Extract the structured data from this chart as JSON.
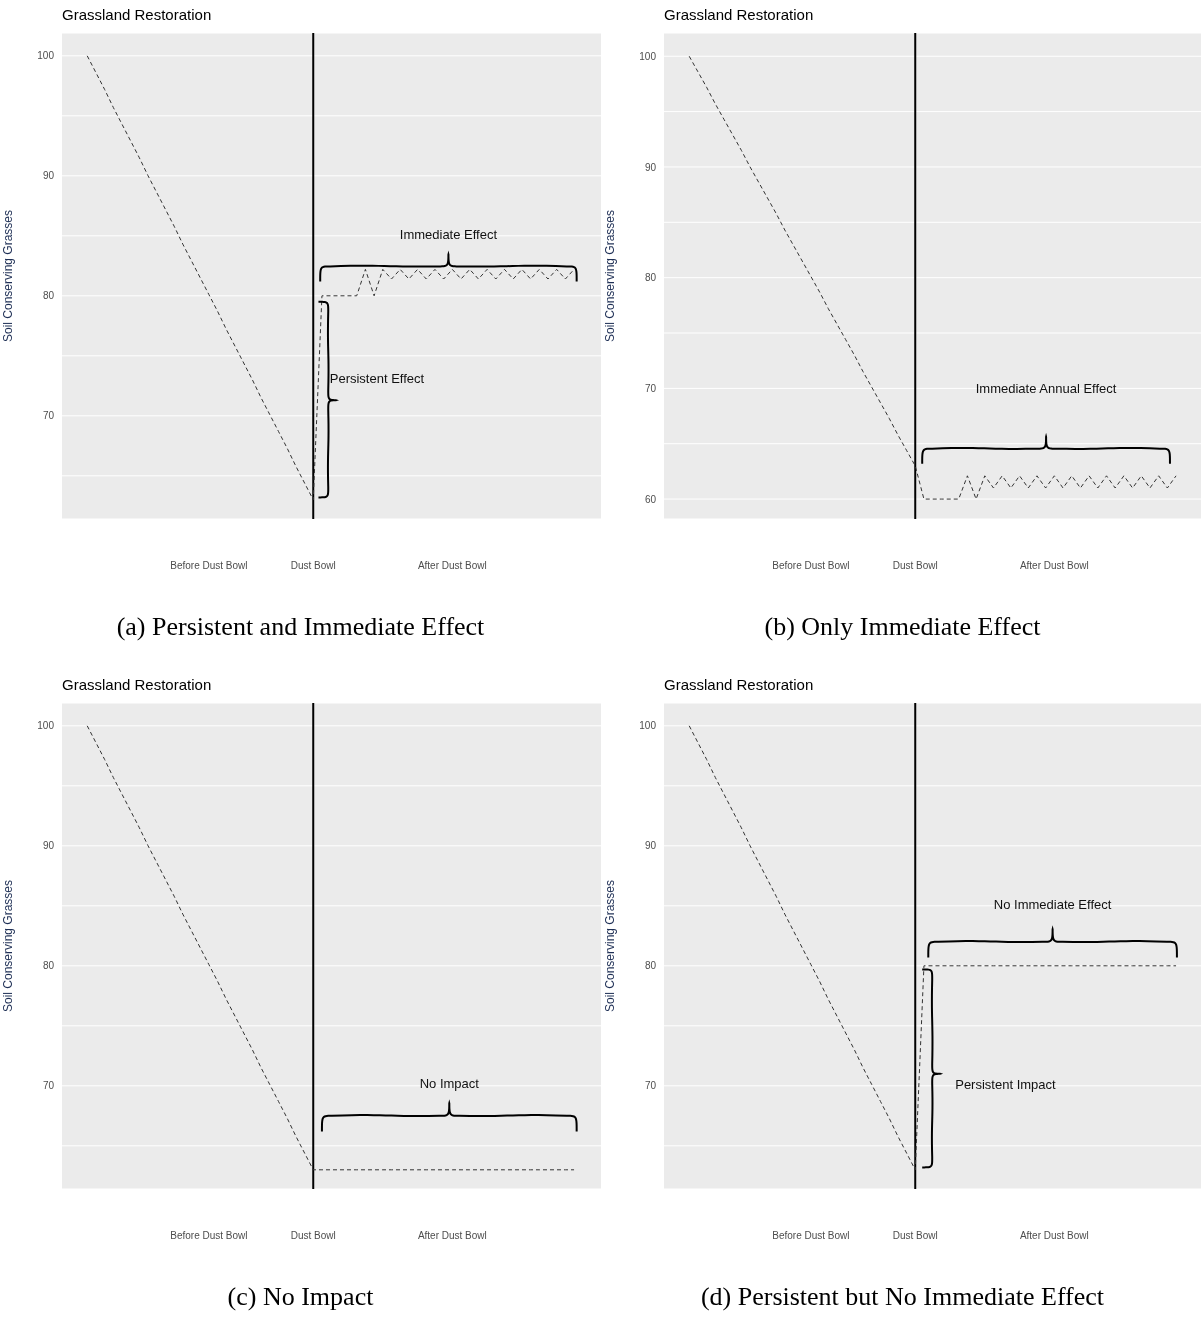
{
  "chart_data": [
    {
      "type": "line",
      "title": "Grassland Restoration",
      "ylabel": "Soil Conserving Grasses",
      "categories": [
        null,
        null,
        null,
        null,
        null,
        null,
        null,
        null,
        null,
        null,
        null,
        null,
        null,
        null,
        "Before Dust Bowl",
        null,
        null,
        null,
        null,
        null,
        null,
        null,
        null,
        null,
        null,
        null,
        "Dust Bowl",
        null,
        null,
        null,
        null,
        null,
        null,
        null,
        null,
        null,
        null,
        null,
        null,
        null,
        null,
        null,
        "After Dust Bowl",
        null,
        null,
        null,
        null,
        null,
        null,
        null,
        null,
        null,
        null,
        null,
        null,
        null,
        null
      ],
      "series": [
        {
          "color": "#333333",
          "values": [
            100,
            98.6,
            97.2,
            95.7,
            94.3,
            92.9,
            91.5,
            90,
            88.6,
            87.2,
            85.8,
            84.3,
            82.9,
            81.5,
            80.1,
            78.7,
            77.2,
            75.8,
            74.4,
            73,
            71.5,
            70.1,
            68.7,
            67.3,
            65.8,
            64.4,
            63,
            80,
            80,
            80,
            80,
            80,
            82.2,
            80,
            82.2,
            81.4,
            82.2,
            81.4,
            82.2,
            81.4,
            82.2,
            81.4,
            82.2,
            81.4,
            82.2,
            81.4,
            82.2,
            81.4,
            82.2,
            81.4,
            82.2,
            81.4,
            82.2,
            81.4,
            82.2,
            81.4,
            82.2
          ]
        }
      ],
      "ylim": [
        61.4,
        101.9
      ],
      "yticks": [
        {
          "value": 65,
          "label": null
        },
        70,
        {
          "value": 75,
          "label": null
        },
        80,
        {
          "value": 85,
          "label": null
        },
        90,
        {
          "value": 95,
          "label": null
        },
        100
      ],
      "grid": "y",
      "line_style": "dashed",
      "marker": "none",
      "ref_lines": [
        {
          "axis": "x",
          "value": "Dust Bowl",
          "color": "#000000"
        }
      ],
      "annotations": [
        "Immediate Effect",
        "Persistent Effect",
        "(a) Persistent and Immediate Effect"
      ]
    },
    {
      "type": "line",
      "title": "Grassland Restoration",
      "ylabel": "Soil Conserving Grasses",
      "categories": [
        null,
        null,
        null,
        null,
        null,
        null,
        null,
        null,
        null,
        null,
        null,
        null,
        null,
        null,
        "Before Dust Bowl",
        null,
        null,
        null,
        null,
        null,
        null,
        null,
        null,
        null,
        null,
        null,
        "Dust Bowl",
        null,
        null,
        null,
        null,
        null,
        null,
        null,
        null,
        null,
        null,
        null,
        null,
        null,
        null,
        null,
        "After Dust Bowl",
        null,
        null,
        null,
        null,
        null,
        null,
        null,
        null,
        null,
        null,
        null,
        null,
        null,
        null
      ],
      "series": [
        {
          "color": "#333333",
          "values": [
            100,
            98.6,
            97.2,
            95.7,
            94.3,
            92.9,
            91.5,
            90,
            88.6,
            87.2,
            85.8,
            84.3,
            82.9,
            81.5,
            80.1,
            78.7,
            77.2,
            75.8,
            74.4,
            73,
            71.5,
            70.1,
            68.7,
            67.3,
            65.8,
            64.4,
            63,
            60,
            60,
            60,
            60,
            60,
            62.1,
            60,
            62.1,
            61,
            62.1,
            61,
            62.1,
            61,
            62.1,
            61,
            62.1,
            61,
            62.1,
            61,
            62.1,
            61,
            62.1,
            61,
            62.1,
            61,
            62.1,
            61,
            62.1,
            61,
            62.1
          ]
        }
      ],
      "ylim": [
        58.2,
        102.1
      ],
      "yticks": [
        60,
        {
          "value": 65,
          "label": null
        },
        70,
        {
          "value": 75,
          "label": null
        },
        80,
        {
          "value": 85,
          "label": null
        },
        90,
        {
          "value": 95,
          "label": null
        },
        100
      ],
      "grid": "y",
      "line_style": "dashed",
      "marker": "none",
      "ref_lines": [
        {
          "axis": "x",
          "value": "Dust Bowl",
          "color": "#000000"
        }
      ],
      "annotations": [
        "Immediate Annual Effect",
        "(b) Only Immediate Effect"
      ]
    },
    {
      "type": "line",
      "title": "Grassland Restoration",
      "ylabel": "Soil Conserving Grasses",
      "categories": [
        null,
        null,
        null,
        null,
        null,
        null,
        null,
        null,
        null,
        null,
        null,
        null,
        null,
        null,
        "Before Dust Bowl",
        null,
        null,
        null,
        null,
        null,
        null,
        null,
        null,
        null,
        null,
        null,
        "Dust Bowl",
        null,
        null,
        null,
        null,
        null,
        null,
        null,
        null,
        null,
        null,
        null,
        null,
        null,
        null,
        null,
        "After Dust Bowl",
        null,
        null,
        null,
        null,
        null,
        null,
        null,
        null,
        null,
        null,
        null,
        null,
        null,
        null
      ],
      "series": [
        {
          "color": "#333333",
          "values": [
            100,
            98.6,
            97.2,
            95.7,
            94.3,
            92.9,
            91.5,
            90,
            88.6,
            87.2,
            85.8,
            84.3,
            82.9,
            81.5,
            80.1,
            78.7,
            77.2,
            75.8,
            74.4,
            73,
            71.5,
            70.1,
            68.7,
            67.3,
            65.8,
            64.4,
            63,
            63,
            63,
            63,
            63,
            63,
            63,
            63,
            63,
            63,
            63,
            63,
            63,
            63,
            63,
            63,
            63,
            63,
            63,
            63,
            63,
            63,
            63,
            63,
            63,
            63,
            63,
            63,
            63,
            63,
            63
          ]
        }
      ],
      "ylim": [
        61.4,
        101.9
      ],
      "yticks": [
        {
          "value": 65,
          "label": null
        },
        70,
        {
          "value": 75,
          "label": null
        },
        80,
        {
          "value": 85,
          "label": null
        },
        90,
        {
          "value": 95,
          "label": null
        },
        100
      ],
      "grid": "y",
      "line_style": "dashed",
      "marker": "none",
      "ref_lines": [
        {
          "axis": "x",
          "value": "Dust Bowl",
          "color": "#000000"
        }
      ],
      "annotations": [
        "No Impact",
        "(c) No Impact"
      ]
    },
    {
      "type": "line",
      "title": "Grassland Restoration",
      "ylabel": "Soil Conserving Grasses",
      "categories": [
        null,
        null,
        null,
        null,
        null,
        null,
        null,
        null,
        null,
        null,
        null,
        null,
        null,
        null,
        "Before Dust Bowl",
        null,
        null,
        null,
        null,
        null,
        null,
        null,
        null,
        null,
        null,
        null,
        "Dust Bowl",
        null,
        null,
        null,
        null,
        null,
        null,
        null,
        null,
        null,
        null,
        null,
        null,
        null,
        null,
        null,
        "After Dust Bowl",
        null,
        null,
        null,
        null,
        null,
        null,
        null,
        null,
        null,
        null,
        null,
        null,
        null,
        null
      ],
      "series": [
        {
          "color": "#333333",
          "values": [
            100,
            98.6,
            97.2,
            95.7,
            94.3,
            92.9,
            91.5,
            90,
            88.6,
            87.2,
            85.8,
            84.3,
            82.9,
            81.5,
            80.1,
            78.7,
            77.2,
            75.8,
            74.4,
            73,
            71.5,
            70.1,
            68.7,
            67.3,
            65.8,
            64.4,
            63,
            80,
            80,
            80,
            80,
            80,
            80,
            80,
            80,
            80,
            80,
            80,
            80,
            80,
            80,
            80,
            80,
            80,
            80,
            80,
            80,
            80,
            80,
            80,
            80,
            80,
            80,
            80,
            80,
            80,
            80
          ]
        }
      ],
      "ylim": [
        61.4,
        101.9
      ],
      "yticks": [
        {
          "value": 65,
          "label": null
        },
        70,
        {
          "value": 75,
          "label": null
        },
        80,
        {
          "value": 85,
          "label": null
        },
        90,
        {
          "value": 95,
          "label": null
        },
        100
      ],
      "grid": "y",
      "line_style": "dashed",
      "marker": "none",
      "ref_lines": [
        {
          "axis": "x",
          "value": "Dust Bowl",
          "color": "#000000"
        }
      ],
      "annotations": [
        "No Immediate Effect",
        "Persistent Impact",
        "(d) Persistent but No Immediate Effect"
      ]
    }
  ]
}
